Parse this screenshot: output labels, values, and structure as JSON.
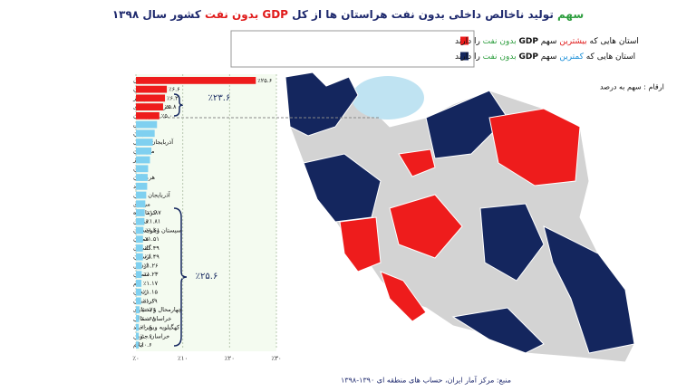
{
  "chart_data": {
    "type": "hbar",
    "title": [
      {
        "text": "سهم",
        "color": "#2e9e3f"
      },
      {
        "text": " تولید ناخالص داخلی بدون نفت هراستان ها از کل ",
        "color": "#1f2a6e"
      },
      {
        "text": "GDP",
        "color": "#e01b1b"
      },
      {
        "text": " بدون نفت",
        "color": "#e01b1b"
      },
      {
        "text": " کشور سال ۱۳۹۸",
        "color": "#1f2a6e"
      }
    ],
    "legend": [
      {
        "color": "#ee1c1c",
        "segments": [
          {
            "text": "استان هایی که ",
            "color": "#111111"
          },
          {
            "text": "بیشترین",
            "color": "#e01b1b"
          },
          {
            "text": " سهم ",
            "color": "#111111"
          },
          {
            "text": "GDP",
            "color": "#111111"
          },
          {
            "text": " بدون نفت",
            "color": "#2e9e3f"
          },
          {
            "text": " را دارند",
            "color": "#111111"
          }
        ]
      },
      {
        "color": "#14265e",
        "segments": [
          {
            "text": "استان هایی که ",
            "color": "#111111"
          },
          {
            "text": "کمترین",
            "color": "#1a8fd8"
          },
          {
            "text": " سهم ",
            "color": "#111111"
          },
          {
            "text": "GDP",
            "color": "#111111"
          },
          {
            "text": " بدون نفت",
            "color": "#2e9e3f"
          },
          {
            "text": " را دارند",
            "color": "#111111"
          }
        ]
      }
    ],
    "units_note": "ارقام : سهم به درصد",
    "source": "منبع: مرکز آمار ایران، حساب های منطقه ای ۱۳۹۰-۱۳۹۸",
    "annotations": [
      "٪۲۳.۶",
      "٪۲۵.۶"
    ],
    "categories": [
      "تهران",
      "اصفهان",
      "بوشهر",
      "خراسان رضوی",
      "خوزستان",
      "فارس",
      "کرمان",
      "آذربایجان شرقی",
      "مازندران",
      "البرز",
      "گیلان",
      "هرمزگان",
      "یزد",
      "آذربایجان غربی",
      "مرکزی",
      "کرمانشاه",
      "قزوین",
      "سیستان وبلوچستان",
      "همدان",
      "گلستان",
      "لرستان",
      "اردبیل",
      "سمنان",
      "قم",
      "زنجان",
      "کردستان",
      "چهارمحال و بختیاری",
      "خراسان شمالی",
      "کهگیلویه وبویراحمد",
      "خراسان جنوبی",
      "ایلام"
    ],
    "values": [
      25.6,
      6.6,
      6.2,
      5.8,
      5.0,
      4.5,
      4.0,
      3.6,
      3.3,
      3.0,
      2.6,
      2.5,
      2.4,
      2.2,
      2.0,
      1.87,
      1.81,
      1.61,
      1.51,
      1.49,
      1.49,
      1.26,
      1.23,
      1.17,
      1.15,
      1.09,
      0.76,
      0.68,
      0.6,
      0.6,
      0.6
    ],
    "value_labels": [
      "٪۲۵.۶",
      "٪۶.۶",
      "٪۶.۲",
      "٪۵.۸",
      "٪۵.۰",
      null,
      null,
      null,
      null,
      null,
      null,
      null,
      null,
      null,
      null,
      "٪۱.۸۷",
      "٪۱.۸۱",
      "٪۱.۶۱",
      "٪۱.۵۱",
      "٪۱.۴۹",
      "٪۱.۴۹",
      "٪۱.۲۶",
      "٪۱.۲۳",
      "٪۱.۱۷",
      "٪۱.۱۵",
      "٪۱.۰۹",
      "٪۰.۷۶",
      "٪۰.۶۸",
      "٪۰.۶",
      "٪۰.۶",
      "٪۰.۶"
    ],
    "colors": [
      "#ee1c1c",
      "#ee1c1c",
      "#ee1c1c",
      "#ee1c1c",
      "#ee1c1c",
      "#7fd0f0",
      "#7fd0f0",
      "#7fd0f0",
      "#7fd0f0",
      "#7fd0f0",
      "#7fd0f0",
      "#7fd0f0",
      "#7fd0f0",
      "#7fd0f0",
      "#7fd0f0",
      "#7fd0f0",
      "#7fd0f0",
      "#7fd0f0",
      "#7fd0f0",
      "#7fd0f0",
      "#7fd0f0",
      "#7fd0f0",
      "#7fd0f0",
      "#7fd0f0",
      "#7fd0f0",
      "#7fd0f0",
      "#7fd0f0",
      "#7fd0f0",
      "#7fd0f0",
      "#7fd0f0",
      "#7fd0f0"
    ],
    "xlim": [
      0,
      30
    ],
    "xticks": [
      {
        "value": 0,
        "label": "٪۰"
      },
      {
        "value": 10,
        "label": "٪۱۰"
      },
      {
        "value": 20,
        "label": "٪۲۰"
      },
      {
        "value": 30,
        "label": "٪۳۰"
      }
    ],
    "grid": true
  }
}
